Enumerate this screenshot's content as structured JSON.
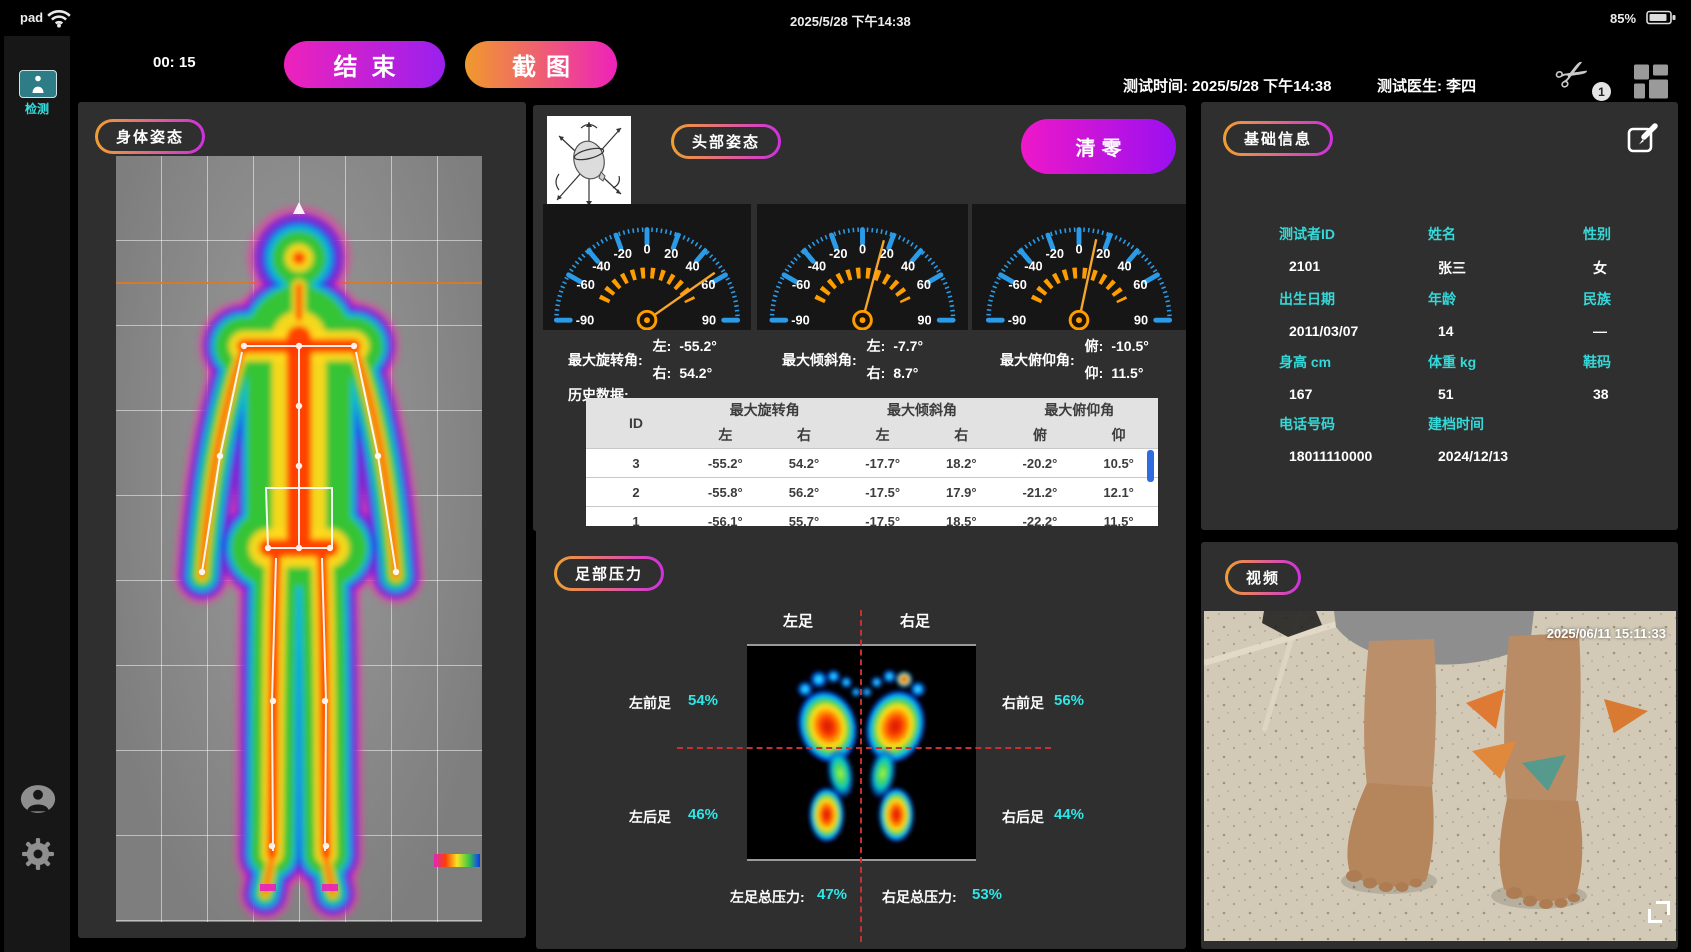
{
  "status_bar": {
    "device_label": "pad",
    "datetime": "2025/5/28 下午14:38",
    "battery_percent": "85%"
  },
  "sidebar": {
    "detect_label": "检测"
  },
  "header": {
    "timer": "00: 15",
    "end_button": "结束",
    "screenshot_button": "截图",
    "test_time_label": "测试时间:",
    "test_time_value": "2025/5/28 下午14:38",
    "doctor_label": "测试医生:",
    "doctor_value": "李四",
    "scissors_badge_count": "1"
  },
  "body_posture": {
    "title": "身体姿态"
  },
  "head_posture": {
    "title": "头部姿态",
    "reset_button": "清零",
    "gauge_ticks": [
      "-90",
      "-60",
      "-40",
      "-20",
      "0",
      "20",
      "40",
      "60",
      "90"
    ],
    "gauges": [
      {
        "name": "max-rotation-gauge",
        "needle_angle": 55
      },
      {
        "name": "max-tilt-gauge",
        "needle_angle": 15
      },
      {
        "name": "max-pitch-gauge",
        "needle_angle": 12
      }
    ],
    "metrics": [
      {
        "label": "最大旋转角:",
        "line1_key": "左:",
        "line1_val": "-55.2°",
        "line2_key": "右:",
        "line2_val": "54.2°"
      },
      {
        "label": "最大倾斜角:",
        "line1_key": "左:",
        "line1_val": "-7.7°",
        "line2_key": "右:",
        "line2_val": "8.7°"
      },
      {
        "label": "最大俯仰角:",
        "line1_key": "俯:",
        "line1_val": "-10.5°",
        "line2_key": "仰:",
        "line2_val": "11.5°"
      }
    ],
    "history_label": "历史数据:",
    "table": {
      "id_header": "ID",
      "groups": [
        "最大旋转角",
        "最大倾斜角",
        "最大俯仰角"
      ],
      "subs": [
        "左",
        "右",
        "左",
        "右",
        "俯",
        "仰"
      ],
      "rows": [
        {
          "id": "3",
          "c1": "-55.2°",
          "c2": "54.2°",
          "c3": "-17.7°",
          "c4": "18.2°",
          "c5": "-20.2°",
          "c6": "10.5°"
        },
        {
          "id": "2",
          "c1": "-55.8°",
          "c2": "56.2°",
          "c3": "-17.5°",
          "c4": "17.9°",
          "c5": "-21.2°",
          "c6": "12.1°"
        },
        {
          "id": "1",
          "c1": "-56.1°",
          "c2": "55.7°",
          "c3": "-17.5°",
          "c4": "18.5°",
          "c5": "-22.2°",
          "c6": "11.5°"
        }
      ]
    }
  },
  "foot_pressure": {
    "title": "足部压力",
    "left_col": "左足",
    "right_col": "右足",
    "left_fore": {
      "label": "左前足",
      "value": "54%"
    },
    "right_fore": {
      "label": "右前足",
      "value": "56%"
    },
    "left_heel": {
      "label": "左后足",
      "value": "46%"
    },
    "right_heel": {
      "label": "右后足",
      "value": "44%"
    },
    "left_total": {
      "label": "左足总压力:",
      "value": "47%"
    },
    "right_total": {
      "label": "右足总压力:",
      "value": "53%"
    }
  },
  "basic_info": {
    "title": "基础信息",
    "fields": [
      {
        "label": "测试者ID",
        "value": "2101"
      },
      {
        "label": "姓名",
        "value": "张三"
      },
      {
        "label": "性别",
        "value": "女"
      },
      {
        "label": "出生日期",
        "value": "2011/03/07"
      },
      {
        "label": "年龄",
        "value": "14"
      },
      {
        "label": "民族",
        "value": "—"
      },
      {
        "label": "身高 cm",
        "value": "167"
      },
      {
        "label": "体重 kg",
        "value": "51"
      },
      {
        "label": "鞋码",
        "value": "38"
      },
      {
        "label": "电话号码",
        "value": "18011110000"
      },
      {
        "label": "建档时间",
        "value": "2024/12/13"
      }
    ]
  },
  "video": {
    "title": "视频",
    "timestamp": "2025/06/11 15:11:33"
  },
  "colors": {
    "accent_cyan": "#35d8d8",
    "gauge_blue": "#2b9be8",
    "gauge_orange": "#ff9d00",
    "pill_gradient_start": "#f0a030",
    "pill_gradient_end": "#cf2fe0",
    "button_pink": "#ee22bb",
    "button_purple": "#9a20ee",
    "button_orange": "#f09a2c",
    "table_scrollbar_blue": "#2f6ce0",
    "dashed_red": "#c53030"
  }
}
